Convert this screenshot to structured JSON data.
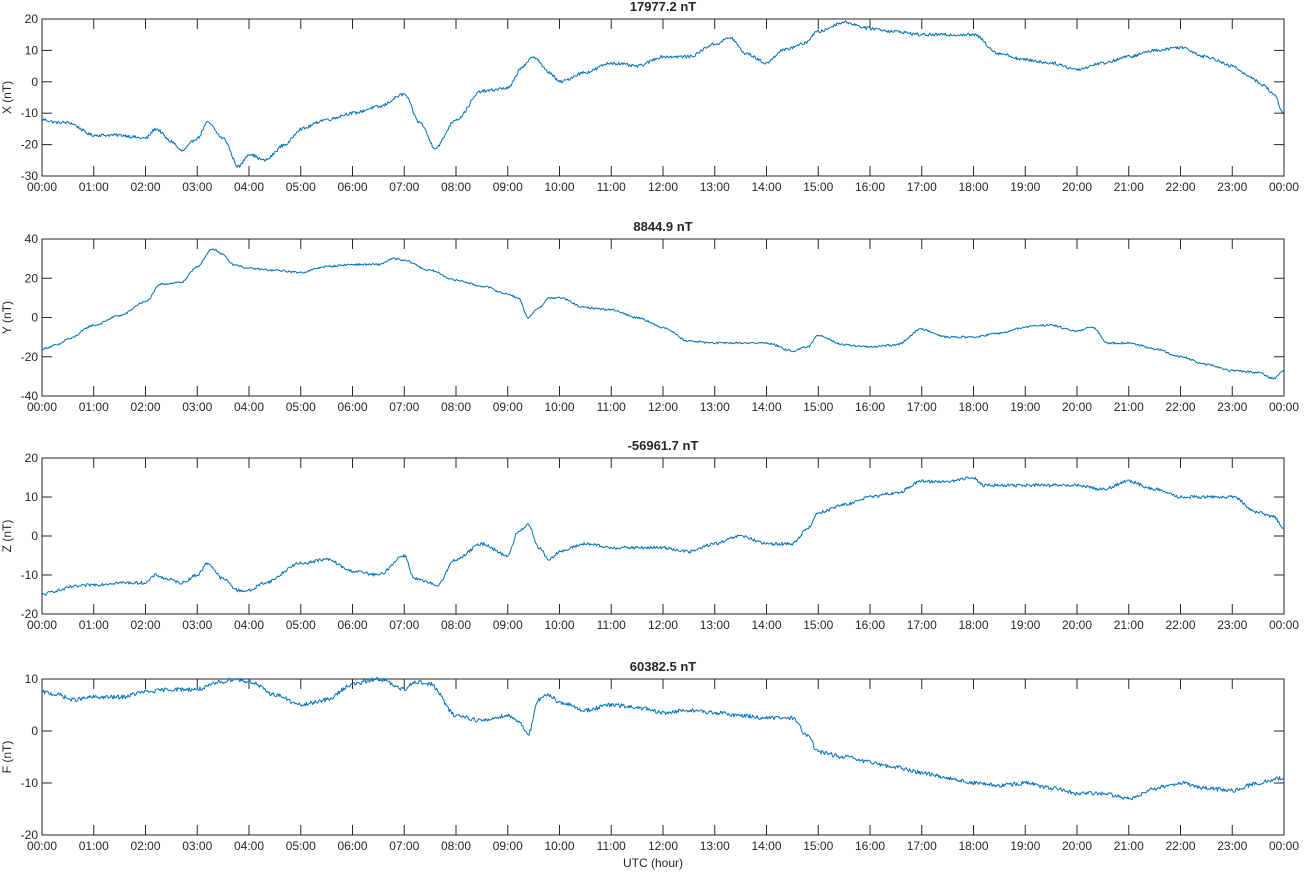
{
  "figure": {
    "xlabel": "UTC (hour)"
  },
  "chart_data": [
    {
      "type": "line",
      "title": "17977.2 nT",
      "ylabel": "X (nT)",
      "xlabel": "",
      "xlim": [
        0,
        24
      ],
      "ylim": [
        -30,
        20
      ],
      "yticks": [
        -30,
        -20,
        -10,
        0,
        10,
        20
      ],
      "xticks": [
        "00:00",
        "01:00",
        "02:00",
        "03:00",
        "04:00",
        "05:00",
        "06:00",
        "07:00",
        "08:00",
        "09:00",
        "10:00",
        "11:00",
        "12:00",
        "13:00",
        "14:00",
        "15:00",
        "16:00",
        "17:00",
        "18:00",
        "19:00",
        "20:00",
        "21:00",
        "22:00",
        "23:00",
        "00:00"
      ],
      "grid": false,
      "color": "#0072BD",
      "noise": 0.5,
      "series": [
        {
          "x": [
            0,
            0.3,
            0.5,
            1,
            1.5,
            2,
            2.2,
            2.5,
            2.7,
            3,
            3.2,
            3.5,
            3.8,
            4,
            4.3,
            4.7,
            5,
            5.5,
            6,
            6.5,
            7,
            7.3,
            7.6,
            8,
            8.5,
            9,
            9.3,
            9.5,
            9.8,
            10,
            10.5,
            11,
            11.5,
            12,
            12.5,
            13,
            13.3,
            13.6,
            14,
            14.3,
            14.7,
            15,
            15.5,
            16,
            16.5,
            17,
            17.5,
            18,
            18.5,
            19,
            19.5,
            20,
            20.5,
            21,
            21.5,
            22,
            22.5,
            23,
            23.3,
            23.6,
            23.8,
            24
          ],
          "y": [
            -12,
            -13,
            -13,
            -17,
            -17,
            -18,
            -15,
            -19,
            -22,
            -18,
            -13,
            -18,
            -27,
            -23,
            -25,
            -20,
            -15,
            -12,
            -10,
            -8,
            -4,
            -13,
            -21,
            -12,
            -3,
            -2,
            5,
            8,
            3,
            0,
            3,
            6,
            5,
            8,
            8,
            12,
            14,
            9,
            6,
            10,
            12,
            16,
            19,
            17,
            16,
            15,
            15,
            15,
            9,
            7,
            6,
            4,
            6,
            8,
            10,
            11,
            8,
            5,
            2,
            -1,
            -4,
            -10
          ]
        }
      ]
    },
    {
      "type": "line",
      "title": "8844.9 nT",
      "ylabel": "Y (nT)",
      "xlabel": "",
      "xlim": [
        0,
        24
      ],
      "ylim": [
        -40,
        40
      ],
      "yticks": [
        -40,
        -20,
        0,
        20,
        40
      ],
      "xticks": [
        "00:00",
        "01:00",
        "02:00",
        "03:00",
        "04:00",
        "05:00",
        "06:00",
        "07:00",
        "08:00",
        "09:00",
        "10:00",
        "11:00",
        "12:00",
        "13:00",
        "14:00",
        "15:00",
        "16:00",
        "17:00",
        "18:00",
        "19:00",
        "20:00",
        "21:00",
        "22:00",
        "23:00",
        "00:00"
      ],
      "grid": false,
      "color": "#0072BD",
      "noise": 0.5,
      "series": [
        {
          "x": [
            0,
            0.3,
            0.5,
            1,
            1.5,
            2,
            2.3,
            2.7,
            3,
            3.3,
            3.5,
            3.7,
            4,
            4.5,
            5,
            5.5,
            6,
            6.5,
            6.8,
            7,
            7.5,
            8,
            8.5,
            9,
            9.2,
            9.4,
            9.6,
            9.8,
            10,
            10.5,
            11,
            11.5,
            12,
            12.5,
            13,
            13.5,
            14,
            14.5,
            14.8,
            15,
            15.5,
            16,
            16.5,
            17,
            17.5,
            18,
            18.5,
            19,
            19.2,
            19.5,
            20,
            20.3,
            20.6,
            21,
            21.5,
            22,
            22.5,
            23,
            23.5,
            23.8,
            24
          ],
          "y": [
            -16,
            -14,
            -11,
            -4,
            1,
            8,
            17,
            18,
            26,
            35,
            32,
            27,
            25,
            24,
            23,
            26,
            27,
            27,
            30,
            29,
            24,
            19,
            16,
            12,
            10,
            0,
            5,
            10,
            10,
            5,
            4,
            0,
            -5,
            -12,
            -13,
            -13,
            -13,
            -17,
            -15,
            -9,
            -14,
            -15,
            -14,
            -6,
            -10,
            -10,
            -8,
            -5,
            -4,
            -4,
            -7,
            -5,
            -13,
            -13,
            -16,
            -20,
            -24,
            -27,
            -28,
            -31,
            -27
          ]
        }
      ]
    },
    {
      "type": "line",
      "title": "-56961.7 nT",
      "ylabel": "Z (nT)",
      "xlabel": "",
      "xlim": [
        0,
        24
      ],
      "ylim": [
        -20,
        20
      ],
      "yticks": [
        -20,
        -10,
        0,
        10,
        20
      ],
      "xticks": [
        "00:00",
        "01:00",
        "02:00",
        "03:00",
        "04:00",
        "05:00",
        "06:00",
        "07:00",
        "08:00",
        "09:00",
        "10:00",
        "11:00",
        "12:00",
        "13:00",
        "14:00",
        "15:00",
        "16:00",
        "17:00",
        "18:00",
        "19:00",
        "20:00",
        "21:00",
        "22:00",
        "23:00",
        "00:00"
      ],
      "grid": false,
      "color": "#0072BD",
      "noise": 0.4,
      "series": [
        {
          "x": [
            0,
            0.3,
            0.6,
            1,
            1.5,
            2,
            2.2,
            2.4,
            2.7,
            3,
            3.2,
            3.5,
            3.8,
            4,
            4.3,
            5,
            5.5,
            6,
            6.5,
            7,
            7.2,
            7.5,
            7.6,
            8,
            8.5,
            9,
            9.2,
            9.4,
            9.6,
            9.8,
            10,
            10.5,
            11,
            11.5,
            12,
            12.5,
            13,
            13.5,
            14,
            14.5,
            14.8,
            15,
            15.5,
            16,
            16.5,
            17,
            17.5,
            18,
            18.2,
            18.5,
            19,
            19.5,
            20,
            20.5,
            21,
            21.5,
            22,
            22.5,
            23,
            23.5,
            23.8,
            24
          ],
          "y": [
            -15,
            -14,
            -13,
            -12.5,
            -12,
            -12,
            -10,
            -11,
            -12,
            -10,
            -7,
            -11,
            -14,
            -14,
            -12,
            -7,
            -6,
            -9,
            -10,
            -5,
            -11,
            -12,
            -13,
            -6,
            -2,
            -5,
            1,
            3,
            -3,
            -6,
            -4,
            -2,
            -3,
            -3,
            -3,
            -4,
            -2,
            0,
            -2,
            -2,
            2,
            6,
            8,
            10,
            11,
            14,
            14,
            15,
            13,
            13,
            13,
            13,
            13,
            12,
            14,
            12,
            10,
            10,
            10,
            6,
            5,
            2
          ]
        }
      ]
    },
    {
      "type": "line",
      "title": "60382.5 nT",
      "ylabel": "F (nT)",
      "xlabel": "UTC (hour)",
      "xlim": [
        0,
        24
      ],
      "ylim": [
        -20,
        10
      ],
      "yticks": [
        -20,
        -10,
        0,
        10
      ],
      "xticks": [
        "00:00",
        "01:00",
        "02:00",
        "03:00",
        "04:00",
        "05:00",
        "06:00",
        "07:00",
        "08:00",
        "09:00",
        "10:00",
        "11:00",
        "12:00",
        "13:00",
        "14:00",
        "15:00",
        "16:00",
        "17:00",
        "18:00",
        "19:00",
        "20:00",
        "21:00",
        "22:00",
        "23:00",
        "00:00"
      ],
      "grid": false,
      "color": "#0072BD",
      "noise": 0.4,
      "series": [
        {
          "x": [
            0,
            0.3,
            0.6,
            1,
            1.5,
            2,
            2.5,
            3,
            3.5,
            3.7,
            4,
            4.5,
            5,
            5.5,
            6,
            6.5,
            7,
            7.2,
            7.5,
            8,
            8.5,
            9,
            9.2,
            9.4,
            9.6,
            9.8,
            10,
            10.5,
            11,
            11.5,
            12,
            12.5,
            13,
            13.5,
            14,
            14.5,
            14.8,
            15,
            15.5,
            16,
            16.5,
            17,
            17.5,
            18,
            18.5,
            19,
            19.5,
            20,
            20.5,
            21,
            21.5,
            22,
            22.5,
            23,
            23.5,
            24
          ],
          "y": [
            7.5,
            7,
            6,
            6.5,
            6.5,
            7.5,
            8,
            8,
            9.5,
            10,
            9.5,
            7,
            5,
            6,
            9,
            10,
            8,
            9.5,
            9,
            3,
            2,
            3,
            2,
            -0.5,
            6,
            7,
            5.5,
            4,
            5,
            4.5,
            3.5,
            4,
            3.5,
            3,
            2.5,
            2.5,
            -1,
            -4,
            -5,
            -6,
            -7,
            -8,
            -9,
            -10,
            -10.5,
            -10,
            -11,
            -12,
            -12,
            -13,
            -11,
            -10,
            -11,
            -11.5,
            -10,
            -9
          ]
        }
      ]
    }
  ]
}
